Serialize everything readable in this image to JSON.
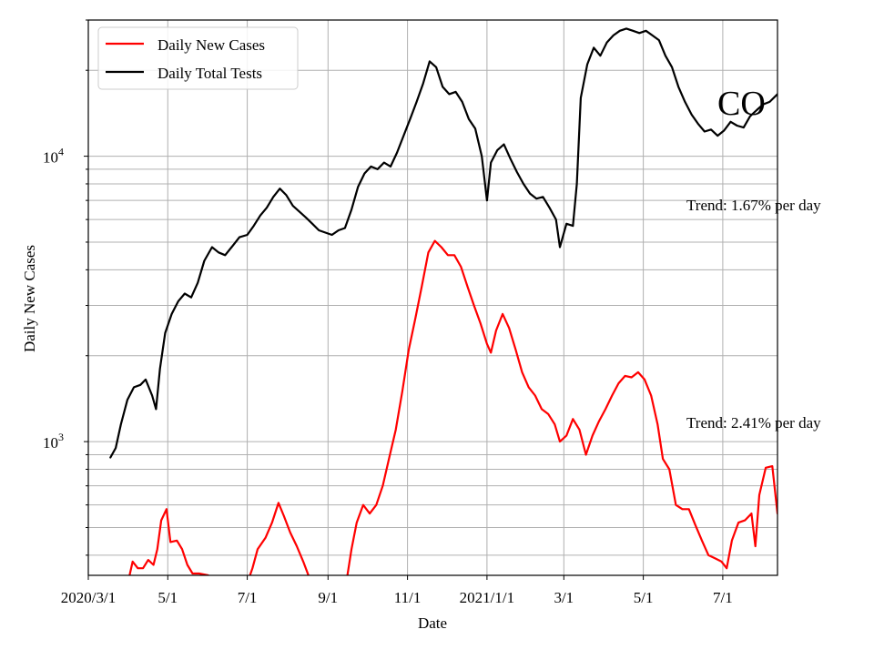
{
  "chart_data": {
    "type": "line",
    "xlabel": "Date",
    "ylabel": "Daily New Cases",
    "x_ticks": [
      "2020/3/1",
      "5/1",
      "7/1",
      "9/1",
      "11/1",
      "2021/1/1",
      "3/1",
      "5/1",
      "7/1"
    ],
    "x_tick_dates": [
      "2020-03-01",
      "2020-05-01",
      "2020-07-01",
      "2020-09-01",
      "2020-11-01",
      "2021-01-01",
      "2021-03-01",
      "2021-05-01",
      "2021-07-01"
    ],
    "x_range": [
      "2020-03-01",
      "2021-08-12"
    ],
    "y_scale": "log",
    "y_ticks": [
      {
        "base": "10",
        "exp": "3",
        "value": 1000
      },
      {
        "base": "10",
        "exp": "4",
        "value": 10000
      }
    ],
    "ylim": [
      340,
      30000
    ],
    "grid": true,
    "legend_position": "upper left",
    "series": [
      {
        "name": "Daily New Cases",
        "color": "#ff0000",
        "points": [
          [
            "2020-03-24",
            300
          ],
          [
            "2020-04-01",
            330
          ],
          [
            "2020-04-04",
            380
          ],
          [
            "2020-04-08",
            360
          ],
          [
            "2020-04-12",
            360
          ],
          [
            "2020-04-16",
            385
          ],
          [
            "2020-04-20",
            370
          ],
          [
            "2020-04-23",
            420
          ],
          [
            "2020-04-26",
            530
          ],
          [
            "2020-04-30",
            580
          ],
          [
            "2020-05-03",
            445
          ],
          [
            "2020-05-08",
            450
          ],
          [
            "2020-05-12",
            420
          ],
          [
            "2020-05-16",
            370
          ],
          [
            "2020-05-20",
            345
          ],
          [
            "2020-05-25",
            345
          ],
          [
            "2020-06-01",
            340
          ],
          [
            "2020-06-10",
            320
          ],
          [
            "2020-06-20",
            300
          ],
          [
            "2020-06-30",
            310
          ],
          [
            "2020-07-05",
            360
          ],
          [
            "2020-07-09",
            420
          ],
          [
            "2020-07-15",
            460
          ],
          [
            "2020-07-20",
            520
          ],
          [
            "2020-07-25",
            610
          ],
          [
            "2020-07-29",
            550
          ],
          [
            "2020-08-03",
            480
          ],
          [
            "2020-08-08",
            430
          ],
          [
            "2020-08-13",
            380
          ],
          [
            "2020-08-17",
            340
          ],
          [
            "2020-08-24",
            300
          ],
          [
            "2020-09-05",
            300
          ],
          [
            "2020-09-15",
            320
          ],
          [
            "2020-09-19",
            420
          ],
          [
            "2020-09-23",
            520
          ],
          [
            "2020-09-28",
            600
          ],
          [
            "2020-10-03",
            560
          ],
          [
            "2020-10-08",
            600
          ],
          [
            "2020-10-13",
            700
          ],
          [
            "2020-10-18",
            880
          ],
          [
            "2020-10-23",
            1100
          ],
          [
            "2020-10-28",
            1500
          ],
          [
            "2020-11-02",
            2100
          ],
          [
            "2020-11-07",
            2700
          ],
          [
            "2020-11-12",
            3500
          ],
          [
            "2020-11-17",
            4600
          ],
          [
            "2020-11-22",
            5050
          ],
          [
            "2020-11-27",
            4800
          ],
          [
            "2020-12-02",
            4500
          ],
          [
            "2020-12-07",
            4500
          ],
          [
            "2020-12-12",
            4100
          ],
          [
            "2020-12-17",
            3500
          ],
          [
            "2020-12-22",
            3000
          ],
          [
            "2020-12-27",
            2600
          ],
          [
            "2021-01-01",
            2200
          ],
          [
            "2021-01-04",
            2050
          ],
          [
            "2021-01-08",
            2450
          ],
          [
            "2021-01-13",
            2800
          ],
          [
            "2021-01-18",
            2500
          ],
          [
            "2021-01-23",
            2100
          ],
          [
            "2021-01-28",
            1750
          ],
          [
            "2021-02-02",
            1550
          ],
          [
            "2021-02-07",
            1450
          ],
          [
            "2021-02-12",
            1300
          ],
          [
            "2021-02-17",
            1250
          ],
          [
            "2021-02-22",
            1150
          ],
          [
            "2021-02-26",
            1000
          ],
          [
            "2021-03-03",
            1050
          ],
          [
            "2021-03-08",
            1200
          ],
          [
            "2021-03-13",
            1100
          ],
          [
            "2021-03-18",
            900
          ],
          [
            "2021-03-23",
            1050
          ],
          [
            "2021-03-28",
            1180
          ],
          [
            "2021-04-02",
            1300
          ],
          [
            "2021-04-07",
            1450
          ],
          [
            "2021-04-12",
            1600
          ],
          [
            "2021-04-17",
            1700
          ],
          [
            "2021-04-22",
            1680
          ],
          [
            "2021-04-27",
            1750
          ],
          [
            "2021-05-02",
            1650
          ],
          [
            "2021-05-07",
            1450
          ],
          [
            "2021-05-12",
            1150
          ],
          [
            "2021-05-16",
            870
          ],
          [
            "2021-05-21",
            800
          ],
          [
            "2021-05-26",
            600
          ],
          [
            "2021-05-31",
            580
          ],
          [
            "2021-06-05",
            580
          ],
          [
            "2021-06-10",
            510
          ],
          [
            "2021-06-15",
            450
          ],
          [
            "2021-06-20",
            400
          ],
          [
            "2021-06-25",
            390
          ],
          [
            "2021-06-30",
            380
          ],
          [
            "2021-07-04",
            360
          ],
          [
            "2021-07-08",
            450
          ],
          [
            "2021-07-13",
            520
          ],
          [
            "2021-07-18",
            530
          ],
          [
            "2021-07-23",
            560
          ],
          [
            "2021-07-26",
            430
          ],
          [
            "2021-07-29",
            650
          ],
          [
            "2021-08-03",
            810
          ],
          [
            "2021-08-08",
            820
          ],
          [
            "2021-08-12",
            560
          ]
        ]
      },
      {
        "name": "Daily Total Tests",
        "color": "#000000",
        "points": [
          [
            "2020-03-18",
            880
          ],
          [
            "2020-03-22",
            950
          ],
          [
            "2020-03-26",
            1150
          ],
          [
            "2020-03-31",
            1400
          ],
          [
            "2020-04-05",
            1550
          ],
          [
            "2020-04-10",
            1580
          ],
          [
            "2020-04-14",
            1650
          ],
          [
            "2020-04-19",
            1450
          ],
          [
            "2020-04-22",
            1300
          ],
          [
            "2020-04-25",
            1800
          ],
          [
            "2020-04-29",
            2400
          ],
          [
            "2020-05-04",
            2800
          ],
          [
            "2020-05-09",
            3100
          ],
          [
            "2020-05-14",
            3300
          ],
          [
            "2020-05-19",
            3200
          ],
          [
            "2020-05-24",
            3600
          ],
          [
            "2020-05-29",
            4300
          ],
          [
            "2020-06-04",
            4800
          ],
          [
            "2020-06-09",
            4600
          ],
          [
            "2020-06-14",
            4500
          ],
          [
            "2020-06-19",
            4800
          ],
          [
            "2020-06-25",
            5200
          ],
          [
            "2020-07-01",
            5300
          ],
          [
            "2020-07-06",
            5700
          ],
          [
            "2020-07-11",
            6200
          ],
          [
            "2020-07-16",
            6600
          ],
          [
            "2020-07-21",
            7200
          ],
          [
            "2020-07-26",
            7700
          ],
          [
            "2020-07-31",
            7300
          ],
          [
            "2020-08-05",
            6700
          ],
          [
            "2020-08-10",
            6400
          ],
          [
            "2020-08-15",
            6100
          ],
          [
            "2020-08-20",
            5800
          ],
          [
            "2020-08-25",
            5500
          ],
          [
            "2020-08-30",
            5400
          ],
          [
            "2020-09-04",
            5300
          ],
          [
            "2020-09-09",
            5500
          ],
          [
            "2020-09-14",
            5600
          ],
          [
            "2020-09-19",
            6500
          ],
          [
            "2020-09-24",
            7800
          ],
          [
            "2020-09-29",
            8700
          ],
          [
            "2020-10-04",
            9200
          ],
          [
            "2020-10-09",
            9000
          ],
          [
            "2020-10-14",
            9500
          ],
          [
            "2020-10-19",
            9200
          ],
          [
            "2020-10-24",
            10300
          ],
          [
            "2020-10-29",
            11800
          ],
          [
            "2020-11-03",
            13500
          ],
          [
            "2020-11-08",
            15500
          ],
          [
            "2020-11-13",
            18000
          ],
          [
            "2020-11-18",
            21500
          ],
          [
            "2020-11-23",
            20500
          ],
          [
            "2020-11-28",
            17500
          ],
          [
            "2020-12-03",
            16500
          ],
          [
            "2020-12-08",
            16800
          ],
          [
            "2020-12-13",
            15500
          ],
          [
            "2020-12-18",
            13500
          ],
          [
            "2020-12-23",
            12500
          ],
          [
            "2020-12-28",
            10000
          ],
          [
            "2021-01-01",
            7000
          ],
          [
            "2021-01-04",
            9500
          ],
          [
            "2021-01-09",
            10500
          ],
          [
            "2021-01-14",
            11000
          ],
          [
            "2021-01-19",
            9800
          ],
          [
            "2021-01-24",
            8800
          ],
          [
            "2021-01-29",
            8000
          ],
          [
            "2021-02-03",
            7400
          ],
          [
            "2021-02-08",
            7100
          ],
          [
            "2021-02-13",
            7200
          ],
          [
            "2021-02-18",
            6600
          ],
          [
            "2021-02-23",
            6000
          ],
          [
            "2021-02-26",
            4800
          ],
          [
            "2021-03-03",
            5800
          ],
          [
            "2021-03-08",
            5700
          ],
          [
            "2021-03-11",
            8000
          ],
          [
            "2021-03-14",
            16000
          ],
          [
            "2021-03-19",
            21000
          ],
          [
            "2021-03-24",
            24000
          ],
          [
            "2021-03-29",
            22500
          ],
          [
            "2021-04-03",
            25000
          ],
          [
            "2021-04-08",
            26500
          ],
          [
            "2021-04-13",
            27500
          ],
          [
            "2021-04-18",
            28000
          ],
          [
            "2021-04-23",
            27500
          ],
          [
            "2021-04-28",
            27000
          ],
          [
            "2021-05-03",
            27500
          ],
          [
            "2021-05-08",
            26500
          ],
          [
            "2021-05-13",
            25500
          ],
          [
            "2021-05-18",
            22500
          ],
          [
            "2021-05-23",
            20500
          ],
          [
            "2021-05-28",
            17500
          ],
          [
            "2021-06-02",
            15500
          ],
          [
            "2021-06-07",
            14000
          ],
          [
            "2021-06-12",
            13000
          ],
          [
            "2021-06-17",
            12200
          ],
          [
            "2021-06-22",
            12400
          ],
          [
            "2021-06-27",
            11800
          ],
          [
            "2021-07-02",
            12300
          ],
          [
            "2021-07-07",
            13200
          ],
          [
            "2021-07-12",
            12800
          ],
          [
            "2021-07-17",
            12600
          ],
          [
            "2021-07-22",
            13800
          ],
          [
            "2021-07-27",
            14500
          ],
          [
            "2021-08-01",
            15200
          ],
          [
            "2021-08-06",
            15500
          ],
          [
            "2021-08-12",
            16500
          ]
        ]
      }
    ],
    "annotations": [
      {
        "id": "trend_tests",
        "text": "Trend: 1.67% per day"
      },
      {
        "id": "trend_cases",
        "text": "Trend: 2.41% per day"
      },
      {
        "id": "state",
        "text": "CO"
      }
    ]
  }
}
